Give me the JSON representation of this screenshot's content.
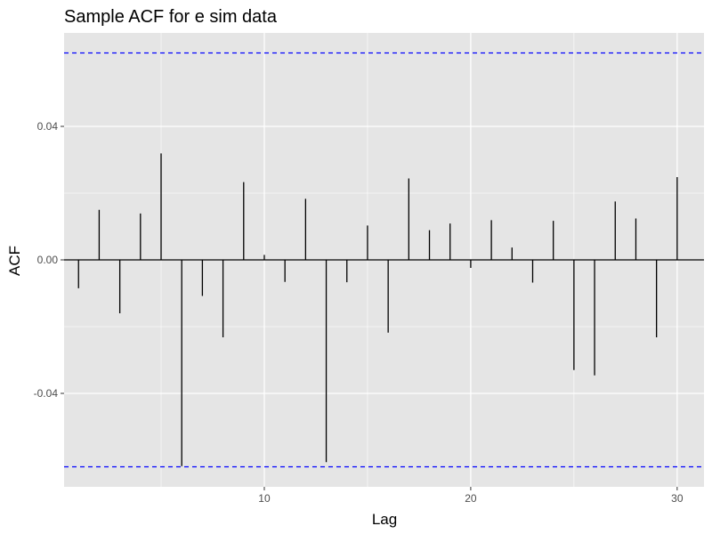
{
  "chart_data": {
    "type": "bar",
    "title": "Sample ACF for e sim data",
    "xlabel": "Lag",
    "ylabel": "ACF",
    "xlim": [
      0.3,
      31.3
    ],
    "ylim": [
      -0.068,
      0.068
    ],
    "x_ticks": [
      {
        "value": 10,
        "label": "10"
      },
      {
        "value": 20,
        "label": "20"
      },
      {
        "value": 30,
        "label": "30"
      }
    ],
    "y_ticks": [
      {
        "value": 0.04,
        "label": "0.04"
      },
      {
        "value": 0.0,
        "label": "0.00"
      },
      {
        "value": -0.04,
        "label": "-0.04"
      }
    ],
    "grid": true,
    "confidence_bounds": [
      0.062,
      -0.062
    ],
    "lags": [
      1,
      2,
      3,
      4,
      5,
      6,
      7,
      8,
      9,
      10,
      11,
      12,
      13,
      14,
      15,
      16,
      17,
      18,
      19,
      20,
      21,
      22,
      23,
      24,
      25,
      26,
      27,
      28,
      29,
      30
    ],
    "acf": [
      -0.0085,
      0.015,
      -0.016,
      0.0139,
      0.0319,
      -0.0618,
      -0.0108,
      -0.0232,
      0.0233,
      0.0015,
      -0.0066,
      0.0183,
      -0.0606,
      -0.0067,
      0.0103,
      -0.0218,
      0.0244,
      0.0089,
      0.0109,
      -0.0024,
      0.0119,
      0.0037,
      -0.0068,
      0.0117,
      -0.033,
      -0.0346,
      0.0175,
      0.0124,
      -0.0232,
      0.0248
    ]
  },
  "colors": {
    "panel_background": "#e5e5e5",
    "grid_line": "#ffffff",
    "acf_line": "#000000",
    "confidence_line": "#0000ff"
  }
}
